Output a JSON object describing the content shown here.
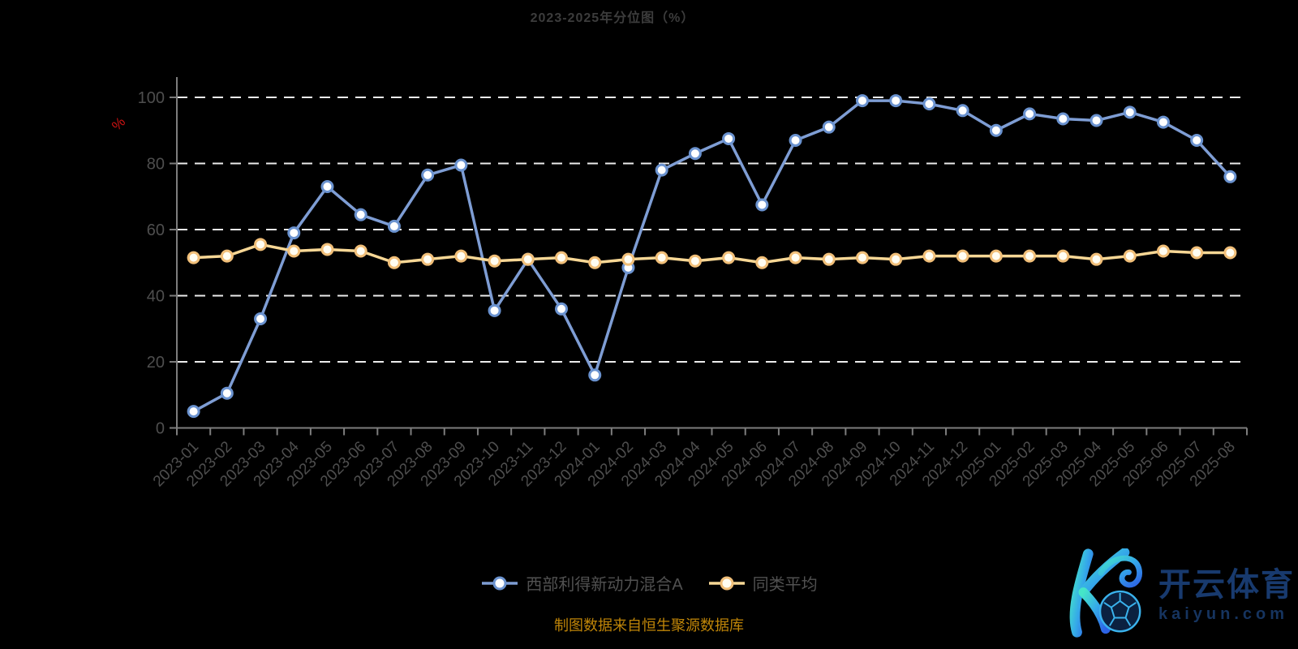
{
  "page": {
    "background": "#000000"
  },
  "chart_data": {
    "type": "line",
    "title": "2023-2025年分位图（%）",
    "ylabel": "%",
    "ylabel_color": "#cc1212",
    "source_note": "制图数据来自恒生聚源数据库",
    "source_note_color": "#bf8508",
    "categories": [
      "2023-01",
      "2023-02",
      "2023-03",
      "2023-04",
      "2023-05",
      "2023-06",
      "2023-07",
      "2023-08",
      "2023-09",
      "2023-10",
      "2023-11",
      "2023-12",
      "2024-01",
      "2024-02",
      "2024-03",
      "2024-04",
      "2024-05",
      "2024-06",
      "2024-07",
      "2024-08",
      "2024-09",
      "2024-10",
      "2024-11",
      "2024-12",
      "2025-01",
      "2025-02",
      "2025-03",
      "2025-04",
      "2025-05",
      "2025-06",
      "2025-07",
      "2025-08"
    ],
    "series": [
      {
        "name": "西部利得新动力混合A",
        "color": "#7e9dd4",
        "marker_fill": "#ffffff",
        "marker_stroke": "#6a92cf",
        "values": [
          5,
          10.5,
          33,
          59,
          73,
          64.5,
          61,
          76.5,
          79.5,
          35.5,
          51,
          36,
          16,
          48.5,
          78,
          83,
          87.5,
          67.5,
          87,
          91,
          99,
          99,
          98,
          96,
          90,
          95,
          93.5,
          93,
          95.5,
          92.5,
          87,
          76
        ]
      },
      {
        "name": "同类平均",
        "color": "#f7d795",
        "marker_fill": "#fffdf2",
        "marker_stroke": "#f1bf79",
        "values": [
          51.5,
          52,
          55.5,
          53.5,
          54,
          53.5,
          50,
          51,
          52,
          50.5,
          51,
          51.5,
          50,
          51,
          51.5,
          50.5,
          51.5,
          50,
          51.5,
          51,
          51.5,
          51,
          52,
          52,
          52,
          52,
          52,
          51,
          52,
          53.5,
          53,
          53
        ]
      }
    ],
    "ylim": [
      0,
      100
    ],
    "yticks": [
      0,
      20,
      40,
      60,
      80,
      100
    ],
    "grid": "dashed-horizontal-white",
    "legend_position": "bottom-center",
    "axis_color": "#7d7d7d",
    "tick_label_color": "#4e4e4e"
  },
  "logo": {
    "brand_name": "开云体育",
    "domain": "kaiyun.com",
    "brand_color": "#183a6e",
    "domain_color": "#16345f",
    "k_icon": "gradient-K-with-football"
  }
}
